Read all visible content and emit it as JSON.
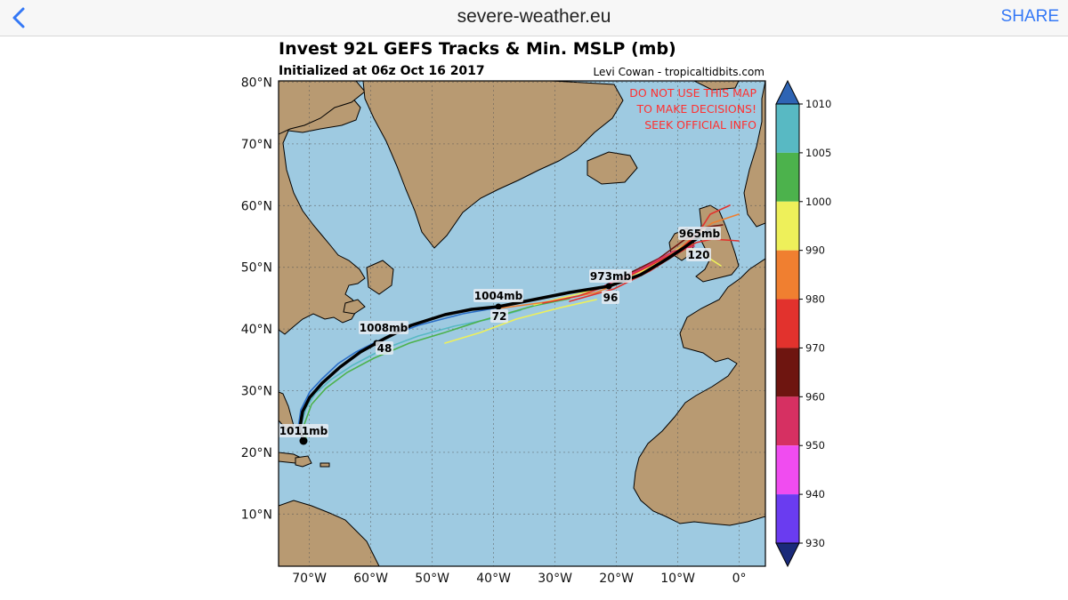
{
  "browser": {
    "title": "severe-weather.eu",
    "share_label": "SHARE"
  },
  "map": {
    "title": "Invest 92L GEFS Tracks & Min. MSLP (mb)",
    "subtitle": "Initialized at 06z Oct 16 2017",
    "credit": "Levi Cowan - tropicaltidbits.com",
    "warning_lines": [
      "DO NOT USE THIS MAP",
      "TO MAKE DECISIONS!",
      "SEEK OFFICIAL INFO"
    ],
    "lat_labels": [
      "80°N",
      "70°N",
      "60°N",
      "50°N",
      "40°N",
      "30°N",
      "20°N",
      "10°N"
    ],
    "lon_labels": [
      "70°W",
      "60°W",
      "50°W",
      "40°W",
      "30°W",
      "20°W",
      "10°W",
      "0°"
    ],
    "pressure_labels": [
      "1011mb",
      "1008mb",
      "1004mb",
      "973mb",
      "965mb"
    ],
    "hour_labels": [
      "48",
      "72",
      "96",
      "120"
    ],
    "colors": {
      "ocean": "#9ecae1",
      "land": "#b89a72",
      "mean_track": "#000000",
      "warning": "#ff3030"
    }
  },
  "colorbar": {
    "levels": [
      "1010",
      "1005",
      "1000",
      "990",
      "980",
      "970",
      "960",
      "950",
      "940",
      "930"
    ],
    "colors": [
      "#58b9c3",
      "#4cb24c",
      "#eef05a",
      "#f07f30",
      "#e2322d",
      "#6e1510",
      "#d63062",
      "#f04cf0",
      "#6a3cf0"
    ],
    "end_colors": [
      "#2e64b4",
      "#1a2a7a"
    ]
  }
}
